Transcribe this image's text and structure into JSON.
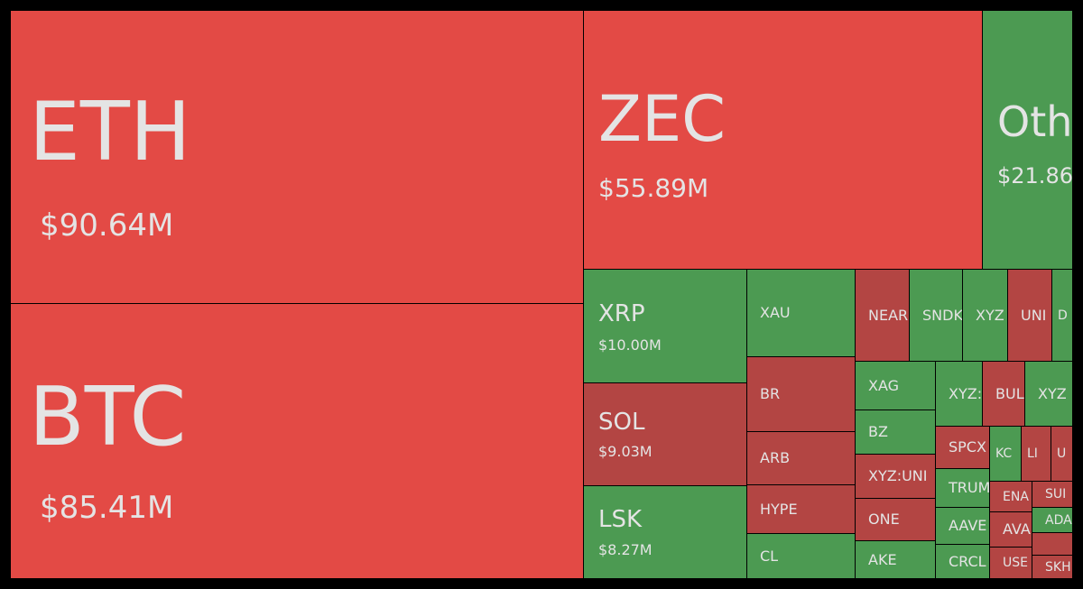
{
  "tiles": [
    {
      "label": "ETH",
      "value": "$90.64M",
      "color": "#e34a45"
    },
    {
      "label": "BTC",
      "value": "$85.41M",
      "color": "#e34a45"
    },
    {
      "label": "ZEC",
      "value": "$55.89M",
      "color": "#e34a45"
    },
    {
      "label": "Oth",
      "value": "$21.86",
      "color": "#4c9a52"
    },
    {
      "label": "XRP",
      "value": "$10.00M",
      "color": "#4c9a52"
    },
    {
      "label": "SOL",
      "value": "$9.03M",
      "color": "#b34543"
    },
    {
      "label": "LSK",
      "value": "$8.27M",
      "color": "#4c9a52"
    },
    {
      "label": "XAU",
      "color": "#4c9a52"
    },
    {
      "label": "BR",
      "color": "#b34543"
    },
    {
      "label": "ARB",
      "color": "#b34543"
    },
    {
      "label": "HYPE",
      "color": "#b34543"
    },
    {
      "label": "CL",
      "color": "#4c9a52"
    },
    {
      "label": "NEAR",
      "color": "#b34543"
    },
    {
      "label": "SNDK",
      "color": "#4c9a52"
    },
    {
      "label": "XYZ",
      "color": "#4c9a52"
    },
    {
      "label": "UNI",
      "color": "#b34543"
    },
    {
      "label": "D",
      "color": "#4c9a52"
    },
    {
      "label": "XAG",
      "color": "#4c9a52"
    },
    {
      "label": "BZ",
      "color": "#4c9a52"
    },
    {
      "label": "XYZ:UNI",
      "color": "#b34543"
    },
    {
      "label": "ONE",
      "color": "#b34543"
    },
    {
      "label": "AKE",
      "color": "#4c9a52"
    },
    {
      "label": "XYZ:",
      "color": "#4c9a52"
    },
    {
      "label": "BUL",
      "color": "#b34543"
    },
    {
      "label": "XYZ",
      "color": "#4c9a52"
    },
    {
      "label": "SPCX",
      "color": "#b34543"
    },
    {
      "label": "TRUM",
      "color": "#4c9a52"
    },
    {
      "label": "AAVE",
      "color": "#4c9a52"
    },
    {
      "label": "CRCL",
      "color": "#4c9a52"
    },
    {
      "label": "KC",
      "color": "#4c9a52"
    },
    {
      "label": "LI",
      "color": "#b34543"
    },
    {
      "label": "U",
      "color": "#b34543"
    },
    {
      "label": "ENA",
      "color": "#b34543"
    },
    {
      "label": "AVA",
      "color": "#b34543"
    },
    {
      "label": "USE",
      "color": "#b34543"
    },
    {
      "label": "SUI",
      "color": "#b34543"
    },
    {
      "label": "ADA",
      "color": "#4c9a52"
    },
    {
      "label": "SKH",
      "color": "#b34543"
    }
  ]
}
